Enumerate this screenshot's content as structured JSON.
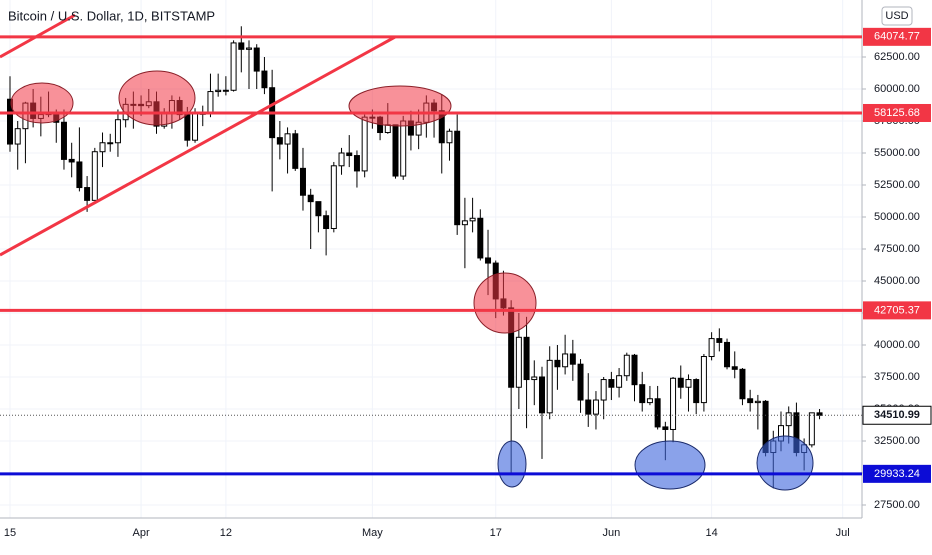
{
  "chart_data": {
    "type": "candlestick",
    "title": "Bitcoin / U.S. Dollar, 1D, BITSTAMP",
    "currency": "USD",
    "categories": [
      "15",
      null,
      null,
      null,
      null,
      null,
      null,
      null,
      null,
      null,
      null,
      null,
      null,
      null,
      null,
      null,
      null,
      "Apr",
      null,
      null,
      null,
      null,
      null,
      null,
      null,
      null,
      null,
      null,
      "12",
      null,
      null,
      null,
      null,
      null,
      null,
      null,
      null,
      null,
      null,
      null,
      null,
      null,
      null,
      null,
      null,
      null,
      null,
      "May",
      null,
      null,
      null,
      null,
      null,
      null,
      null,
      null,
      null,
      null,
      null,
      null,
      null,
      null,
      null,
      "17",
      null,
      null,
      null,
      null,
      null,
      null,
      null,
      null,
      null,
      null,
      null,
      null,
      null,
      null,
      "Jun",
      null,
      null,
      null,
      null,
      null,
      null,
      null,
      null,
      null,
      null,
      null,
      null,
      "14",
      null,
      null,
      null,
      null,
      null,
      null,
      null,
      null,
      null,
      null,
      null,
      null,
      null,
      null,
      null,
      null,
      "Jul"
    ],
    "open": [
      59200,
      55700,
      56900,
      58900,
      57700,
      58000,
      58100,
      57400,
      54500,
      54300,
      52300,
      51300,
      55100,
      55800,
      55800,
      57600,
      58800,
      58800,
      58700,
      59000,
      57100,
      58200,
      59100,
      58000,
      56000,
      58100,
      58100,
      59800,
      59900,
      59900,
      63600,
      63100,
      63200,
      61400,
      60100,
      56200,
      55700,
      56500,
      53800,
      51700,
      51200,
      50100,
      49100,
      54000,
      55000,
      54800,
      53600,
      57800,
      57800,
      56600,
      57200,
      53200,
      57500,
      56400,
      57400,
      58900,
      58300,
      55800,
      56700,
      49400,
      49700,
      49900,
      46800,
      46400,
      43600,
      42900,
      36700,
      40600,
      37300,
      37500,
      34700,
      38800,
      38300,
      39300,
      38500,
      35700,
      34600,
      35700,
      37300,
      36700,
      37600,
      39200,
      36900,
      35500,
      35800,
      33600,
      33400,
      37400,
      36700,
      37300,
      35500,
      39100,
      40500,
      40200,
      38300,
      38100,
      35800,
      35500,
      35600,
      31600,
      32500,
      33700,
      34700,
      31600,
      32200,
      34700,
      null,
      null,
      null
    ],
    "high": [
      61000,
      57500,
      59000,
      60000,
      59400,
      59800,
      58400,
      58400,
      55800,
      57000,
      53200,
      55400,
      56600,
      56500,
      58400,
      59300,
      59800,
      59500,
      60000,
      59800,
      58500,
      59500,
      59400,
      58600,
      58500,
      58700,
      61200,
      61200,
      61000,
      63800,
      64900,
      63800,
      63500,
      62500,
      61500,
      57500,
      57000,
      56800,
      55400,
      52200,
      51200,
      50500,
      54300,
      55400,
      56400,
      55200,
      58000,
      58400,
      57900,
      58900,
      57200,
      57900,
      58300,
      58400,
      59500,
      59200,
      59600,
      56900,
      58000,
      51500,
      51500,
      50600,
      49000,
      46600,
      45800,
      43500,
      42500,
      42200,
      38800,
      38300,
      39900,
      40000,
      40800,
      40400,
      38900,
      37800,
      36400,
      37500,
      37900,
      38200,
      39400,
      39300,
      37900,
      36800,
      36800,
      34000,
      37500,
      38400,
      37700,
      37400,
      39300,
      41000,
      41300,
      40500,
      39500,
      38200,
      36500,
      36100,
      35700,
      33300,
      34800,
      35200,
      35500,
      32700,
      34700,
      35000,
      null,
      null,
      null
    ],
    "low": [
      55100,
      53700,
      54200,
      57000,
      56300,
      57800,
      55800,
      53700,
      53100,
      52000,
      50400,
      51300,
      53900,
      55100,
      54700,
      57000,
      56900,
      57900,
      58500,
      56500,
      56900,
      56900,
      57600,
      55500,
      55800,
      57100,
      57800,
      59400,
      59500,
      59800,
      61300,
      60000,
      60000,
      59600,
      52000,
      54500,
      53400,
      53600,
      50500,
      47500,
      48800,
      47000,
      48800,
      53300,
      53900,
      52300,
      53100,
      56900,
      56000,
      56500,
      53000,
      52900,
      55200,
      55300,
      56200,
      56200,
      53400,
      54400,
      48600,
      46000,
      48800,
      46600,
      43900,
      42100,
      42300,
      30000,
      35000,
      33500,
      35300,
      31100,
      34200,
      36500,
      37700,
      37200,
      34700,
      33600,
      33400,
      34200,
      35700,
      35900,
      37200,
      35600,
      34800,
      35300,
      33400,
      31000,
      32400,
      35800,
      34800,
      34600,
      34800,
      38800,
      39500,
      38100,
      37400,
      35300,
      34800,
      33400,
      31300,
      28800,
      31700,
      32300,
      31300,
      30200,
      32000,
      34200,
      null,
      null,
      null
    ],
    "close": [
      55700,
      56900,
      58900,
      57700,
      58000,
      58100,
      57400,
      54500,
      54300,
      52300,
      51300,
      55100,
      55800,
      55800,
      57600,
      58800,
      58800,
      58700,
      59000,
      57100,
      58200,
      59100,
      58000,
      56000,
      58100,
      58100,
      59800,
      59900,
      59900,
      63600,
      63100,
      63200,
      61400,
      60100,
      56200,
      55700,
      56500,
      53800,
      51700,
      51200,
      50100,
      49100,
      54000,
      55000,
      54800,
      53600,
      57800,
      57800,
      56600,
      57200,
      53200,
      57500,
      56400,
      57400,
      58900,
      58300,
      55800,
      56700,
      49400,
      49700,
      49900,
      46800,
      46400,
      43600,
      42900,
      36700,
      40600,
      37300,
      37500,
      34700,
      38800,
      38300,
      39300,
      38500,
      35700,
      34600,
      35700,
      37300,
      36700,
      37600,
      39200,
      36900,
      35500,
      35800,
      33600,
      33400,
      37400,
      36700,
      37300,
      35500,
      39100,
      40500,
      40200,
      38300,
      38100,
      35800,
      35500,
      35600,
      31600,
      32500,
      33700,
      34700,
      31600,
      32200,
      34700,
      34510.99,
      null,
      null,
      null
    ],
    "up_color": "#ffffff",
    "down_color": "#000000",
    "ylim": [
      26484,
      66953
    ],
    "yticks": [
      {
        "value": 27500,
        "label": "27500.00"
      },
      {
        "value": 30000,
        "label": "30000.00"
      },
      {
        "value": 32500,
        "label": "32500.00"
      },
      {
        "value": 35000,
        "label": "35000.00"
      },
      {
        "value": 37500,
        "label": "37500.00"
      },
      {
        "value": 40000,
        "label": "40000.00"
      },
      {
        "value": 42500,
        "label": "42500.00"
      },
      {
        "value": 45000,
        "label": "45000.00"
      },
      {
        "value": 47500,
        "label": "47500.00"
      },
      {
        "value": 50000,
        "label": "50000.00"
      },
      {
        "value": 52500,
        "label": "52500.00"
      },
      {
        "value": 55000,
        "label": "55000.00"
      },
      {
        "value": 57500,
        "label": "57500.00"
      },
      {
        "value": 60000,
        "label": "60000.00"
      },
      {
        "value": 62500,
        "label": "62500.00"
      }
    ],
    "grid": true,
    "levels": [
      {
        "value": 64074.77,
        "color": "#f23645"
      },
      {
        "value": 58125.68,
        "color": "#f23645"
      },
      {
        "value": 42705.37,
        "color": "#f23645"
      },
      {
        "value": 29933.24,
        "color": "#0c0cd6"
      }
    ],
    "last_price": 34510.99
  }
}
